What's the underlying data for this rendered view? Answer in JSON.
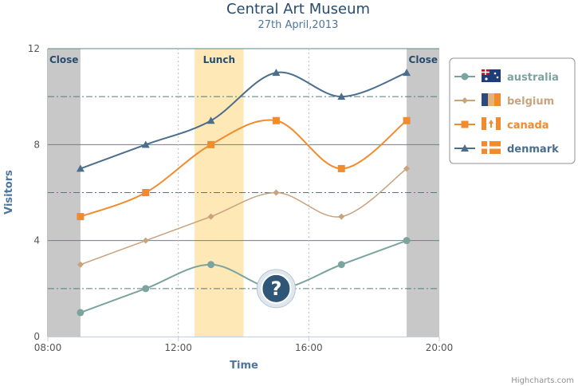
{
  "chart_data": {
    "type": "line",
    "title": "Central Art Museum",
    "subtitle": "27th April,2013",
    "xlabel": "Time",
    "ylabel": "Visitors",
    "x_unit": "hour",
    "xlim": [
      8,
      20
    ],
    "ylim": [
      0,
      12
    ],
    "x_ticks": [
      8,
      12,
      16,
      20
    ],
    "x_tick_labels": [
      "08:00",
      "12:00",
      "16:00",
      "20:00"
    ],
    "y_ticks": [
      0,
      4,
      8,
      12
    ],
    "y_tick_labels": [
      "0",
      "4",
      "8",
      "12"
    ],
    "x": [
      9,
      11,
      13,
      15,
      17,
      19
    ],
    "series": [
      {
        "name": "australia",
        "color": "#7ca49e",
        "marker": "circle",
        "flag": "australia-flag-icon",
        "values": [
          1,
          2,
          3,
          2,
          3,
          4
        ]
      },
      {
        "name": "belgium",
        "color": "#c9a27e",
        "marker": "diamond",
        "flag": "belgium-flag-icon",
        "values": [
          3,
          4,
          5,
          6,
          5,
          7
        ]
      },
      {
        "name": "canada",
        "color": "#f08c2e",
        "marker": "square",
        "flag": "canada-flag-icon",
        "values": [
          5,
          6,
          8,
          9,
          7,
          9
        ]
      },
      {
        "name": "denmark",
        "color": "#4a6e8c",
        "marker": "triangle",
        "flag": "denmark-flag-icon",
        "values": [
          7,
          8,
          9,
          11,
          10,
          11
        ]
      }
    ],
    "bands": [
      {
        "label": "Close",
        "from": 8,
        "to": 9,
        "color": "#c8c8c8",
        "label_align": "left"
      },
      {
        "label": "Lunch",
        "from": 12.5,
        "to": 14,
        "color": "#fde8b6",
        "label_align": "center"
      },
      {
        "label": "Close",
        "from": 19,
        "to": 20,
        "color": "#c8c8c8",
        "label_align": "right"
      }
    ],
    "x_grid_dotted": [
      12,
      16
    ],
    "y_grid_solid": [
      4,
      8,
      12
    ],
    "y_grid_dashdot": [
      2,
      6,
      10
    ],
    "annotation": {
      "icon": "question-mark-icon",
      "x": 15,
      "y": 2
    },
    "legend_position": "right",
    "credits": "Highcharts.com",
    "colors": {
      "title": "#274b6d",
      "subtitle": "#4d759e",
      "axis_title": "#4d759e",
      "grid": "#5a8a86"
    }
  }
}
